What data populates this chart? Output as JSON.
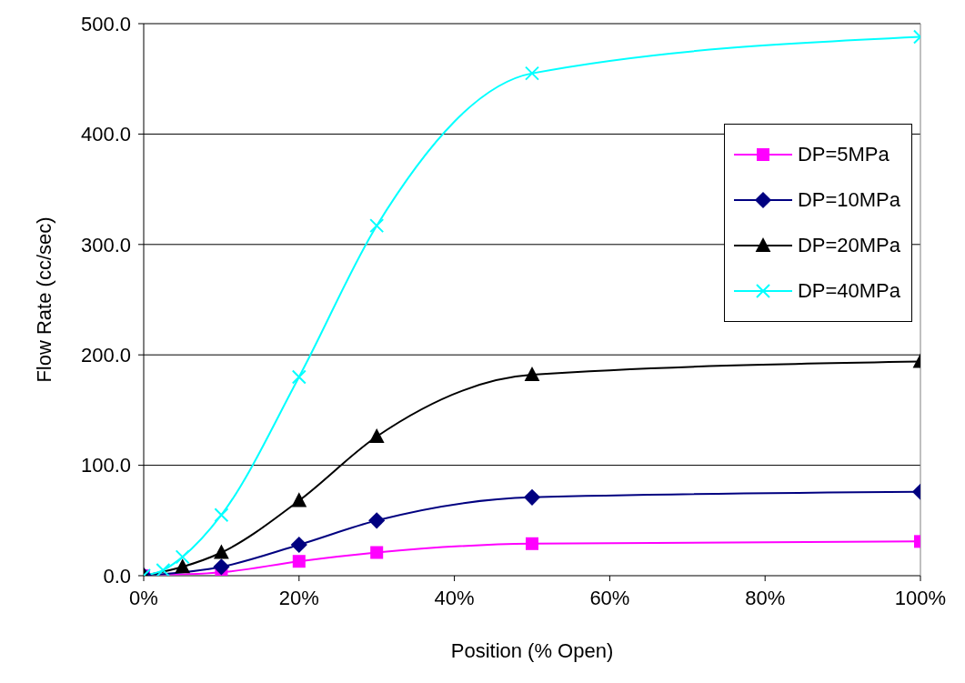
{
  "chart_data": {
    "type": "line",
    "xlabel": "Position (% Open)",
    "ylabel": "Flow Rate (cc/sec)",
    "x": [
      0,
      2.5,
      5,
      10,
      20,
      30,
      50,
      100
    ],
    "series": [
      {
        "name": "DP=5MPa",
        "color": "#ff00ff",
        "marker": "square",
        "values": [
          0,
          null,
          null,
          3,
          13,
          21,
          29,
          31
        ]
      },
      {
        "name": "DP=10MPa",
        "color": "#000080",
        "marker": "diamond",
        "values": [
          0,
          null,
          null,
          8,
          28,
          50,
          71,
          76
        ]
      },
      {
        "name": "DP=20MPa",
        "color": "#000000",
        "marker": "triangle",
        "values": [
          0,
          null,
          8,
          21,
          68,
          126,
          182,
          194
        ]
      },
      {
        "name": "DP=40MPa",
        "color": "#00ffff",
        "marker": "cross",
        "values": [
          0,
          5,
          17,
          55,
          180,
          317,
          455,
          488
        ]
      }
    ],
    "xlim": [
      0,
      100
    ],
    "xticks": [
      {
        "value": 0,
        "label": "0%"
      },
      {
        "value": 20,
        "label": "20%"
      },
      {
        "value": 40,
        "label": "40%"
      },
      {
        "value": 60,
        "label": "60%"
      },
      {
        "value": 80,
        "label": "80%"
      },
      {
        "value": 100,
        "label": "100%"
      }
    ],
    "ylim": [
      0,
      500
    ],
    "yticks": [
      {
        "value": 0,
        "label": "0.0"
      },
      {
        "value": 100,
        "label": "100.0"
      },
      {
        "value": 200,
        "label": "200.0"
      },
      {
        "value": 300,
        "label": "300.0"
      },
      {
        "value": 400,
        "label": "400.0"
      },
      {
        "value": 500,
        "label": "500.0"
      }
    ],
    "grid": "y",
    "legend": "right",
    "line_style": "solid"
  }
}
